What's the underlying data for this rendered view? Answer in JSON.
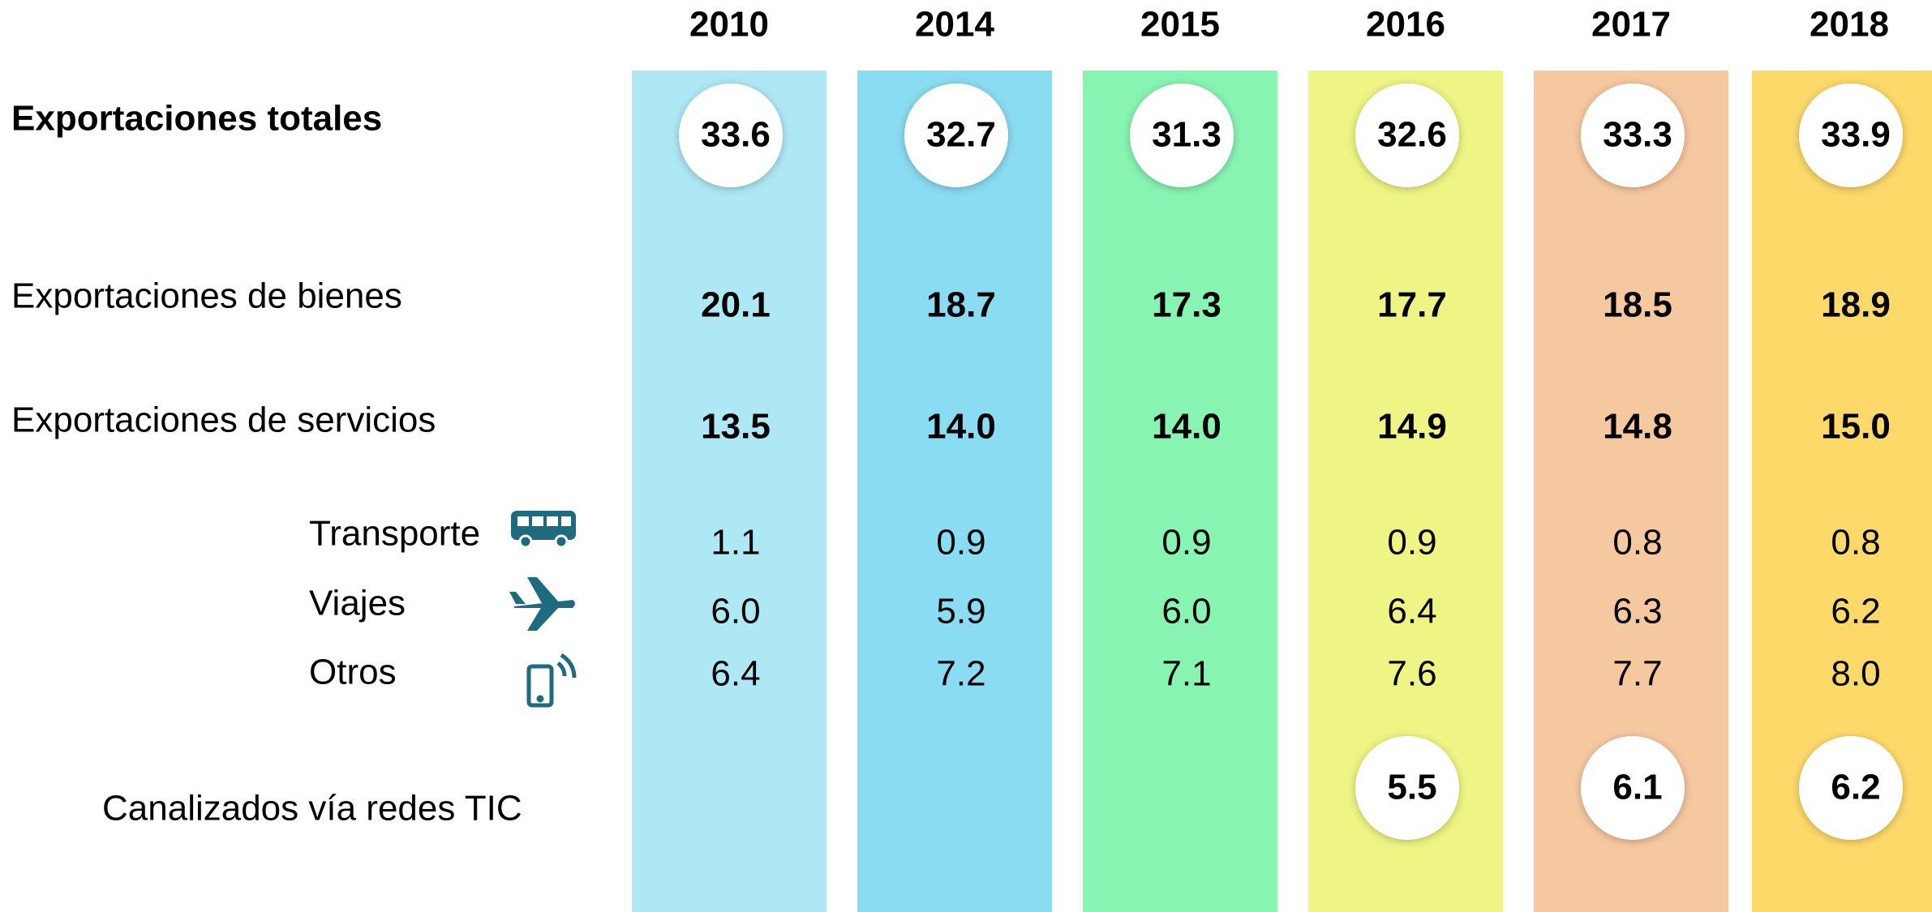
{
  "years": [
    {
      "label": "2010",
      "color": "#1a9ed8",
      "fill": "#aee8f4"
    },
    {
      "label": "2014",
      "color": "#0d4f8b",
      "fill": "#8adcf2"
    },
    {
      "label": "2015",
      "color": "#0e6e5e",
      "fill": "#88f4b2"
    },
    {
      "label": "2016",
      "color": "#4cbb17",
      "fill": "#eef584"
    },
    {
      "label": "2017",
      "color": "#e07d10",
      "fill": "#f6c8a0"
    },
    {
      "label": "2018",
      "color": "#1a6fb8",
      "fill": "#fdd96a"
    }
  ],
  "rows": [
    {
      "label": "Exportaciones totales",
      "values": [
        "33.6",
        "32.7",
        "31.3",
        "32.6",
        "33.3",
        "33.9"
      ]
    },
    {
      "label": "Exportaciones de bienes",
      "values": [
        "20.1",
        "18.7",
        "17.3",
        "17.7",
        "18.5",
        "18.9"
      ]
    },
    {
      "label": "Exportaciones de servicios",
      "values": [
        "13.5",
        "14.0",
        "14.0",
        "14.9",
        "14.8",
        "15.0"
      ]
    },
    {
      "label": "Transporte",
      "values": [
        "1.1",
        "0.9",
        "0.9",
        "0.9",
        "0.8",
        "0.8"
      ]
    },
    {
      "label": "Viajes",
      "values": [
        "6.0",
        "5.9",
        "6.0",
        "6.4",
        "6.3",
        "6.2"
      ]
    },
    {
      "label": "Otros",
      "values": [
        "6.4",
        "7.2",
        "7.1",
        "7.6",
        "7.7",
        "8.0"
      ]
    },
    {
      "label": "Canalizados vía redes TIC",
      "values": [
        null,
        null,
        null,
        "5.5",
        "6.1",
        "6.2"
      ]
    }
  ]
}
